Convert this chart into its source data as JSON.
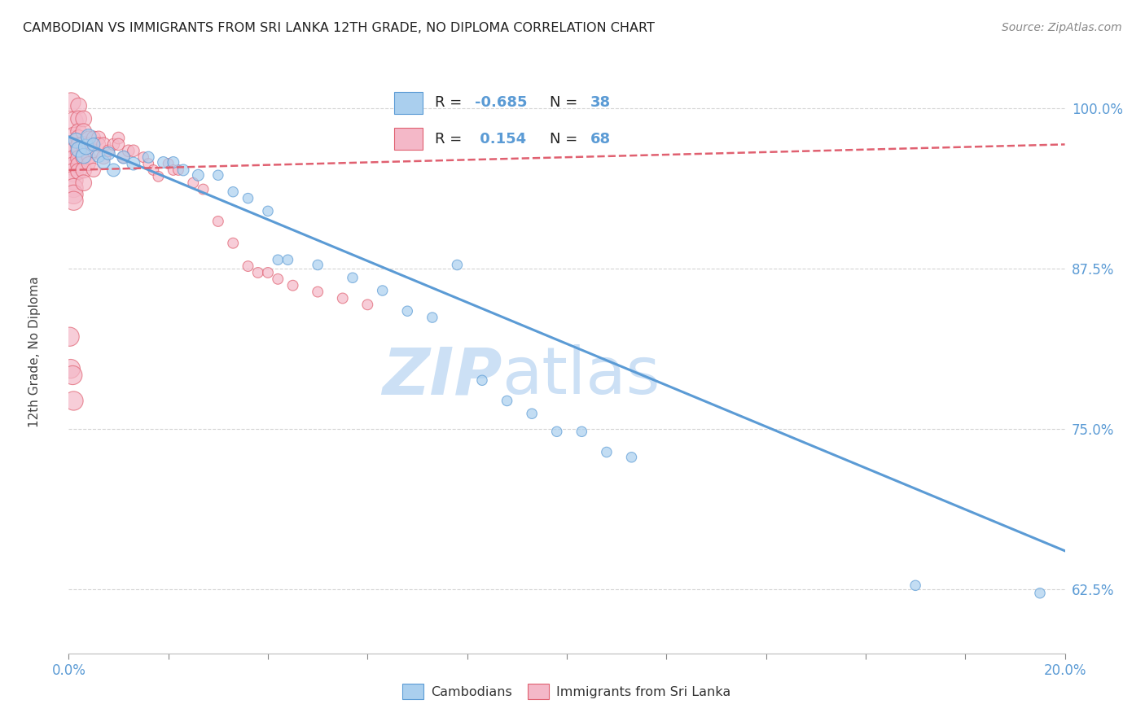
{
  "title": "CAMBODIAN VS IMMIGRANTS FROM SRI LANKA 12TH GRADE, NO DIPLOMA CORRELATION CHART",
  "source": "Source: ZipAtlas.com",
  "ylabel": "12th Grade, No Diploma",
  "ytick_labels": [
    "100.0%",
    "87.5%",
    "75.0%",
    "62.5%"
  ],
  "ytick_values": [
    1.0,
    0.875,
    0.75,
    0.625
  ],
  "xmin": 0.0,
  "xmax": 0.2,
  "ymin": 0.575,
  "ymax": 1.045,
  "cambodian_scatter": [
    [
      0.0015,
      0.975
    ],
    [
      0.002,
      0.968
    ],
    [
      0.003,
      0.963
    ],
    [
      0.0035,
      0.97
    ],
    [
      0.004,
      0.978
    ],
    [
      0.005,
      0.972
    ],
    [
      0.006,
      0.963
    ],
    [
      0.007,
      0.958
    ],
    [
      0.008,
      0.965
    ],
    [
      0.009,
      0.952
    ],
    [
      0.011,
      0.962
    ],
    [
      0.013,
      0.957
    ],
    [
      0.016,
      0.962
    ],
    [
      0.019,
      0.958
    ],
    [
      0.021,
      0.958
    ],
    [
      0.023,
      0.952
    ],
    [
      0.026,
      0.948
    ],
    [
      0.03,
      0.948
    ],
    [
      0.033,
      0.935
    ],
    [
      0.036,
      0.93
    ],
    [
      0.04,
      0.92
    ],
    [
      0.042,
      0.882
    ],
    [
      0.044,
      0.882
    ],
    [
      0.05,
      0.878
    ],
    [
      0.057,
      0.868
    ],
    [
      0.063,
      0.858
    ],
    [
      0.068,
      0.842
    ],
    [
      0.073,
      0.837
    ],
    [
      0.078,
      0.878
    ],
    [
      0.083,
      0.788
    ],
    [
      0.088,
      0.772
    ],
    [
      0.093,
      0.762
    ],
    [
      0.098,
      0.748
    ],
    [
      0.103,
      0.748
    ],
    [
      0.108,
      0.732
    ],
    [
      0.113,
      0.728
    ],
    [
      0.17,
      0.628
    ],
    [
      0.195,
      0.622
    ]
  ],
  "srilanka_scatter": [
    [
      0.0005,
      1.005
    ],
    [
      0.001,
      0.99
    ],
    [
      0.001,
      0.978
    ],
    [
      0.001,
      0.972
    ],
    [
      0.001,
      0.966
    ],
    [
      0.001,
      0.96
    ],
    [
      0.001,
      0.955
    ],
    [
      0.001,
      0.95
    ],
    [
      0.001,
      0.944
    ],
    [
      0.001,
      0.938
    ],
    [
      0.001,
      0.933
    ],
    [
      0.001,
      0.928
    ],
    [
      0.002,
      1.002
    ],
    [
      0.002,
      0.992
    ],
    [
      0.002,
      0.982
    ],
    [
      0.002,
      0.977
    ],
    [
      0.002,
      0.971
    ],
    [
      0.002,
      0.966
    ],
    [
      0.002,
      0.961
    ],
    [
      0.002,
      0.956
    ],
    [
      0.002,
      0.951
    ],
    [
      0.003,
      0.992
    ],
    [
      0.003,
      0.982
    ],
    [
      0.003,
      0.972
    ],
    [
      0.003,
      0.962
    ],
    [
      0.003,
      0.952
    ],
    [
      0.003,
      0.942
    ],
    [
      0.004,
      0.977
    ],
    [
      0.004,
      0.972
    ],
    [
      0.004,
      0.962
    ],
    [
      0.004,
      0.957
    ],
    [
      0.005,
      0.977
    ],
    [
      0.005,
      0.967
    ],
    [
      0.005,
      0.952
    ],
    [
      0.006,
      0.977
    ],
    [
      0.006,
      0.972
    ],
    [
      0.007,
      0.972
    ],
    [
      0.007,
      0.962
    ],
    [
      0.008,
      0.967
    ],
    [
      0.009,
      0.972
    ],
    [
      0.01,
      0.977
    ],
    [
      0.01,
      0.972
    ],
    [
      0.011,
      0.962
    ],
    [
      0.012,
      0.967
    ],
    [
      0.013,
      0.967
    ],
    [
      0.015,
      0.962
    ],
    [
      0.016,
      0.957
    ],
    [
      0.017,
      0.952
    ],
    [
      0.018,
      0.947
    ],
    [
      0.02,
      0.957
    ],
    [
      0.021,
      0.952
    ],
    [
      0.022,
      0.952
    ],
    [
      0.025,
      0.942
    ],
    [
      0.027,
      0.937
    ],
    [
      0.03,
      0.912
    ],
    [
      0.033,
      0.895
    ],
    [
      0.036,
      0.877
    ],
    [
      0.038,
      0.872
    ],
    [
      0.04,
      0.872
    ],
    [
      0.042,
      0.867
    ],
    [
      0.045,
      0.862
    ],
    [
      0.05,
      0.857
    ],
    [
      0.055,
      0.852
    ],
    [
      0.06,
      0.847
    ],
    [
      0.0002,
      0.822
    ],
    [
      0.0004,
      0.797
    ],
    [
      0.0008,
      0.792
    ],
    [
      0.001,
      0.772
    ]
  ],
  "cambodian_line_x": [
    0.0,
    0.2
  ],
  "cambodian_line_y": [
    0.978,
    0.655
  ],
  "srilanka_line_x": [
    0.0,
    0.2
  ],
  "srilanka_line_y": [
    0.952,
    0.972
  ],
  "cambodian_color": "#5b9bd5",
  "srilanka_color": "#e06070",
  "cambodian_fill": "#aacfee",
  "srilanka_fill": "#f4b8c8",
  "background_color": "#ffffff",
  "watermark_zip": "ZIP",
  "watermark_atlas": "atlas",
  "watermark_color": "#cce0f5"
}
